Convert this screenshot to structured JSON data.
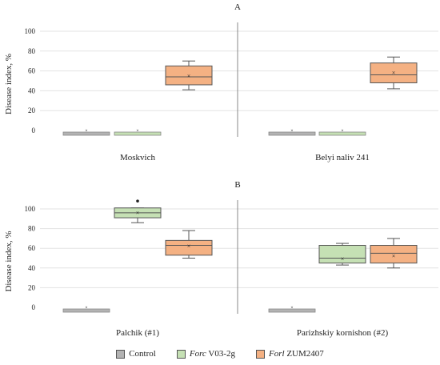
{
  "chart_data": [
    {
      "type": "box",
      "panel_label": "A",
      "ylabel": "Disease index, %",
      "yticks": [
        "0",
        "20",
        "40",
        "60",
        "80",
        "100"
      ],
      "ylim": [
        0,
        100
      ],
      "groups": [
        {
          "name": "Moskvich",
          "boxes": [
            {
              "series": "Control",
              "min": 0,
              "q1": 0,
              "median": 0,
              "q3": 0,
              "max": 0,
              "mean": 0
            },
            {
              "series": "Forc V03-2g",
              "min": 0,
              "q1": 0,
              "median": 0,
              "q3": 0,
              "max": 0,
              "mean": 0
            },
            {
              "series": "Forl ZUM2407",
              "min": 41,
              "q1": 46,
              "median": 54,
              "q3": 65,
              "max": 70,
              "mean": 55
            }
          ]
        },
        {
          "name": "Belyi naliv 241",
          "boxes": [
            {
              "series": "Control",
              "min": 0,
              "q1": 0,
              "median": 0,
              "q3": 0,
              "max": 0,
              "mean": 0
            },
            {
              "series": "Forc V03-2g",
              "min": 0,
              "q1": 0,
              "median": 0,
              "q3": 0,
              "max": 0,
              "mean": 0
            },
            {
              "series": "Forl ZUM2407",
              "min": 42,
              "q1": 48,
              "median": 56,
              "q3": 68,
              "max": 74,
              "mean": 58
            }
          ]
        }
      ]
    },
    {
      "type": "box",
      "panel_label": "B",
      "ylabel": "Disease index, %",
      "yticks": [
        "0",
        "20",
        "40",
        "60",
        "80",
        "100"
      ],
      "ylim": [
        0,
        100
      ],
      "groups": [
        {
          "name": "Palchik (#1)",
          "boxes": [
            {
              "series": "Control",
              "min": 0,
              "q1": 0,
              "median": 0,
              "q3": 0,
              "max": 0,
              "mean": 0
            },
            {
              "series": "Forc V03-2g",
              "min": 86,
              "q1": 91,
              "median": 96,
              "q3": 101,
              "max": 101,
              "mean": 96,
              "outlier": 108
            },
            {
              "series": "Forl ZUM2407",
              "min": 50,
              "q1": 53,
              "median": 63,
              "q3": 68,
              "max": 78,
              "mean": 62
            }
          ]
        },
        {
          "name": "Parizhskiy kornishon (#2)",
          "boxes": [
            {
              "series": "Control",
              "min": 0,
              "q1": 0,
              "median": 0,
              "q3": 0,
              "max": 0,
              "mean": 0
            },
            {
              "series": "Forc V03-2g",
              "min": 43,
              "q1": 45,
              "median": 50,
              "q3": 63,
              "max": 65,
              "mean": 49
            },
            {
              "series": "Forl ZUM2407",
              "min": 40,
              "q1": 45,
              "median": 55,
              "q3": 63,
              "max": 70,
              "mean": 52
            }
          ]
        }
      ]
    }
  ],
  "legend": [
    {
      "italic": "",
      "label": "Control",
      "color": "#b3b3b3"
    },
    {
      "italic": "Forc",
      "label": " V03-2g",
      "color": "#c5e0b4"
    },
    {
      "italic": "Forl",
      "label": " ZUM2407",
      "color": "#f4b183"
    }
  ],
  "colors": {
    "Control": "#b3b3b3",
    "Forc V03-2g": "#c5e0b4",
    "Forl ZUM2407": "#f4b183"
  }
}
